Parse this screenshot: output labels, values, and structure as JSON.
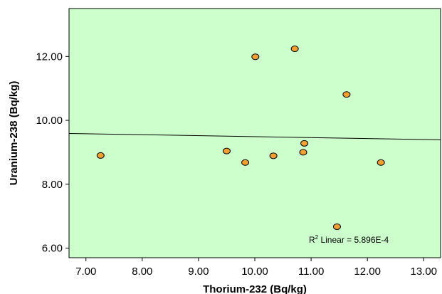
{
  "chart_data": {
    "type": "scatter",
    "title": "",
    "xlabel": "Thorium-232 (Bq/kg)",
    "ylabel": "Uranium-238 (Bq/kg)",
    "xlim": [
      6.7,
      13.3
    ],
    "ylim": [
      5.7,
      13.5
    ],
    "xticks": [
      "7.00",
      "8.00",
      "9.00",
      "10.00",
      "11.00",
      "12.00",
      "13.00"
    ],
    "yticks": [
      "6.00",
      "8.00",
      "10.00",
      "12.00"
    ],
    "grid": false,
    "points": [
      {
        "x": 7.26,
        "y": 8.9
      },
      {
        "x": 9.5,
        "y": 9.04
      },
      {
        "x": 9.83,
        "y": 8.68
      },
      {
        "x": 10.01,
        "y": 11.99
      },
      {
        "x": 10.33,
        "y": 8.89
      },
      {
        "x": 10.71,
        "y": 12.24
      },
      {
        "x": 10.86,
        "y": 9.0
      },
      {
        "x": 10.88,
        "y": 9.28
      },
      {
        "x": 11.46,
        "y": 6.67
      },
      {
        "x": 11.63,
        "y": 10.81
      },
      {
        "x": 12.24,
        "y": 8.68
      }
    ],
    "fit_line": {
      "x": [
        6.7,
        13.3
      ],
      "y": [
        9.59,
        9.39
      ]
    },
    "annotation": {
      "prefix": "R",
      "superscript": "2",
      "text": " Linear = 5.896E-4"
    },
    "colors": {
      "plot_background": "#ccffcc",
      "marker_fill": "#f0a030",
      "marker_edge": "#000000",
      "fit_line": "#000000"
    }
  }
}
